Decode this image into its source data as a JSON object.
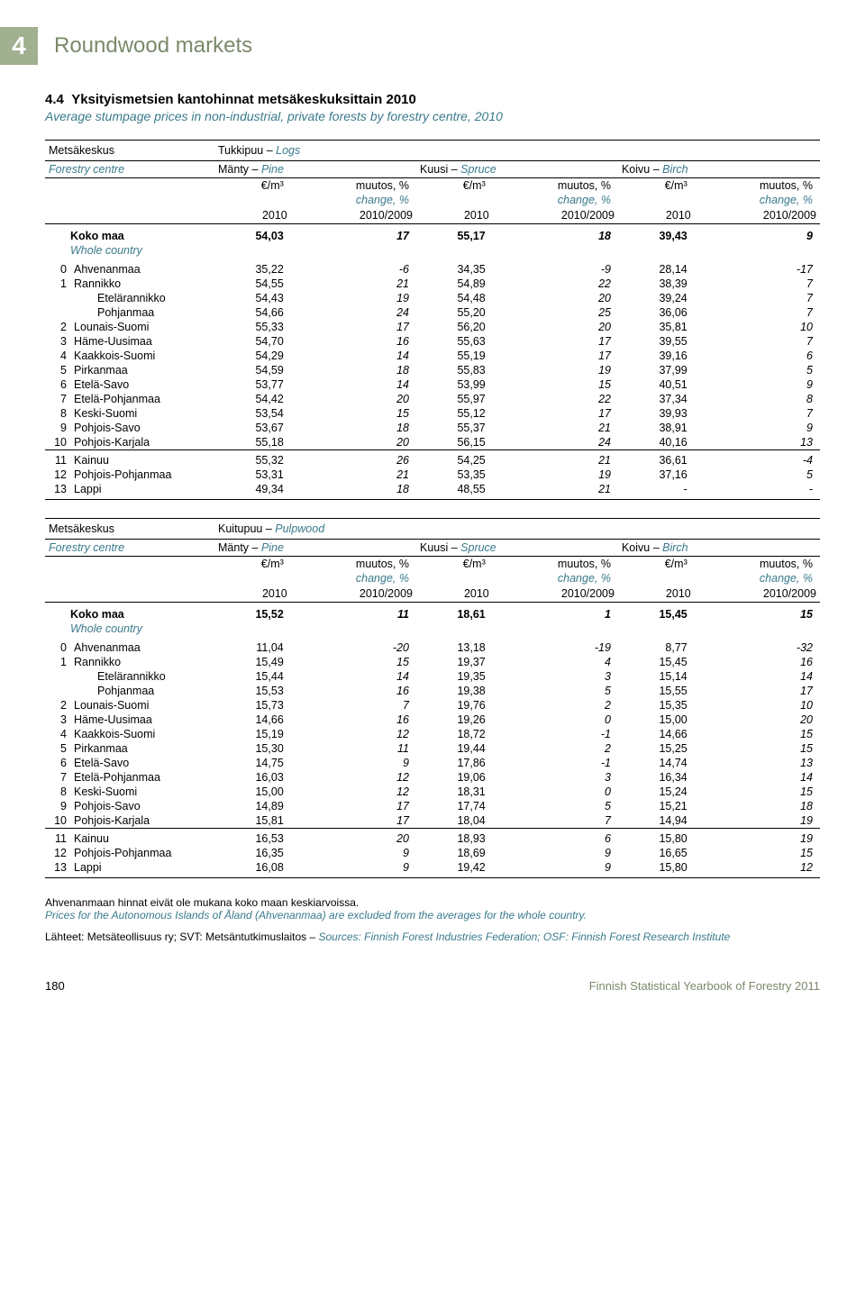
{
  "chapter": {
    "num": "4",
    "title": "Roundwood markets"
  },
  "section": {
    "num": "4.4",
    "title_fi": "Yksityismetsien kantohinnat metsäkeskuksittain 2010",
    "title_en": "Average stumpage prices in non-industrial, private forests by forestry centre, 2010"
  },
  "hdr": {
    "metsakeskus": "Metsäkeskus",
    "forestry_centre": "Forestry centre",
    "manty": "Mänty –",
    "pine": "Pine",
    "kuusi": "Kuusi –",
    "spruce": "Spruce",
    "koivu": "Koivu –",
    "birch": "Birch",
    "unit": "€/m³",
    "muutos": "muutos, %",
    "change": "change, %",
    "year": "2010",
    "period": "2010/2009"
  },
  "tables": [
    {
      "category": "Tukkipuu –",
      "category_en": "Logs",
      "koko": {
        "label": "Koko maa",
        "sub": "Whole country",
        "v": [
          "54,03",
          "17",
          "55,17",
          "18",
          "39,43",
          "9"
        ]
      },
      "groups": [
        [
          {
            "c": "0",
            "n": "Ahvenanmaa",
            "v": [
              "35,22",
              "-6",
              "34,35",
              "-9",
              "28,14",
              "-17"
            ]
          },
          {
            "c": "1",
            "n": "Rannikko",
            "v": [
              "54,55",
              "21",
              "54,89",
              "22",
              "38,39",
              "7"
            ]
          },
          {
            "c": "",
            "n": "Etelärannikko",
            "indent": true,
            "v": [
              "54,43",
              "19",
              "54,48",
              "20",
              "39,24",
              "7"
            ]
          },
          {
            "c": "",
            "n": "Pohjanmaa",
            "indent": true,
            "v": [
              "54,66",
              "24",
              "55,20",
              "25",
              "36,06",
              "7"
            ]
          },
          {
            "c": "2",
            "n": "Lounais-Suomi",
            "v": [
              "55,33",
              "17",
              "56,20",
              "20",
              "35,81",
              "10"
            ]
          },
          {
            "c": "3",
            "n": "Häme-Uusimaa",
            "v": [
              "54,70",
              "16",
              "55,63",
              "17",
              "39,55",
              "7"
            ]
          },
          {
            "c": "4",
            "n": "Kaakkois-Suomi",
            "v": [
              "54,29",
              "14",
              "55,19",
              "17",
              "39,16",
              "6"
            ]
          },
          {
            "c": "5",
            "n": "Pirkanmaa",
            "v": [
              "54,59",
              "18",
              "55,83",
              "19",
              "37,99",
              "5"
            ]
          },
          {
            "c": "6",
            "n": "Etelä-Savo",
            "v": [
              "53,77",
              "14",
              "53,99",
              "15",
              "40,51",
              "9"
            ]
          },
          {
            "c": "7",
            "n": "Etelä-Pohjanmaa",
            "v": [
              "54,42",
              "20",
              "55,97",
              "22",
              "37,34",
              "8"
            ]
          },
          {
            "c": "8",
            "n": "Keski-Suomi",
            "v": [
              "53,54",
              "15",
              "55,12",
              "17",
              "39,93",
              "7"
            ]
          },
          {
            "c": "9",
            "n": "Pohjois-Savo",
            "v": [
              "53,67",
              "18",
              "55,37",
              "21",
              "38,91",
              "9"
            ]
          },
          {
            "c": "10",
            "n": "Pohjois-Karjala",
            "v": [
              "55,18",
              "20",
              "56,15",
              "24",
              "40,16",
              "13"
            ]
          }
        ],
        [
          {
            "c": "11",
            "n": "Kainuu",
            "v": [
              "55,32",
              "26",
              "54,25",
              "21",
              "36,61",
              "-4"
            ]
          },
          {
            "c": "12",
            "n": "Pohjois-Pohjanmaa",
            "v": [
              "53,31",
              "21",
              "53,35",
              "19",
              "37,16",
              "5"
            ]
          },
          {
            "c": "13",
            "n": "Lappi",
            "v": [
              "49,34",
              "18",
              "48,55",
              "21",
              "-",
              "-"
            ]
          }
        ]
      ]
    },
    {
      "category": "Kuitupuu –",
      "category_en": "Pulpwood",
      "koko": {
        "label": "Koko maa",
        "sub": "Whole country",
        "v": [
          "15,52",
          "11",
          "18,61",
          "1",
          "15,45",
          "15"
        ]
      },
      "groups": [
        [
          {
            "c": "0",
            "n": "Ahvenanmaa",
            "v": [
              "11,04",
              "-20",
              "13,18",
              "-19",
              "8,77",
              "-32"
            ]
          },
          {
            "c": "1",
            "n": "Rannikko",
            "v": [
              "15,49",
              "15",
              "19,37",
              "4",
              "15,45",
              "16"
            ]
          },
          {
            "c": "",
            "n": "Etelärannikko",
            "indent": true,
            "v": [
              "15,44",
              "14",
              "19,35",
              "3",
              "15,14",
              "14"
            ]
          },
          {
            "c": "",
            "n": "Pohjanmaa",
            "indent": true,
            "v": [
              "15,53",
              "16",
              "19,38",
              "5",
              "15,55",
              "17"
            ]
          },
          {
            "c": "2",
            "n": "Lounais-Suomi",
            "v": [
              "15,73",
              "7",
              "19,76",
              "2",
              "15,35",
              "10"
            ]
          },
          {
            "c": "3",
            "n": "Häme-Uusimaa",
            "v": [
              "14,66",
              "16",
              "19,26",
              "0",
              "15,00",
              "20"
            ]
          },
          {
            "c": "4",
            "n": "Kaakkois-Suomi",
            "v": [
              "15,19",
              "12",
              "18,72",
              "-1",
              "14,66",
              "15"
            ]
          },
          {
            "c": "5",
            "n": "Pirkanmaa",
            "v": [
              "15,30",
              "11",
              "19,44",
              "2",
              "15,25",
              "15"
            ]
          },
          {
            "c": "6",
            "n": "Etelä-Savo",
            "v": [
              "14,75",
              "9",
              "17,86",
              "-1",
              "14,74",
              "13"
            ]
          },
          {
            "c": "7",
            "n": "Etelä-Pohjanmaa",
            "v": [
              "16,03",
              "12",
              "19,06",
              "3",
              "16,34",
              "14"
            ]
          },
          {
            "c": "8",
            "n": "Keski-Suomi",
            "v": [
              "15,00",
              "12",
              "18,31",
              "0",
              "15,24",
              "15"
            ]
          },
          {
            "c": "9",
            "n": "Pohjois-Savo",
            "v": [
              "14,89",
              "17",
              "17,74",
              "5",
              "15,21",
              "18"
            ]
          },
          {
            "c": "10",
            "n": "Pohjois-Karjala",
            "v": [
              "15,81",
              "17",
              "18,04",
              "7",
              "14,94",
              "19"
            ]
          }
        ],
        [
          {
            "c": "11",
            "n": "Kainuu",
            "v": [
              "16,53",
              "20",
              "18,93",
              "6",
              "15,80",
              "19"
            ]
          },
          {
            "c": "12",
            "n": "Pohjois-Pohjanmaa",
            "v": [
              "16,35",
              "9",
              "18,69",
              "9",
              "16,65",
              "15"
            ]
          },
          {
            "c": "13",
            "n": "Lappi",
            "v": [
              "16,08",
              "9",
              "19,42",
              "9",
              "15,80",
              "12"
            ]
          }
        ]
      ]
    }
  ],
  "footnotes": {
    "fi": "Ahvenanmaan hinnat eivät ole mukana koko maan keskiarvoissa.",
    "en": "Prices for the Autonomous Islands of Åland (Ahvenanmaa) are excluded from the averages for the whole country.",
    "src_fi": "Lähteet: Metsäteollisuus ry; SVT: Metsäntutkimuslaitos – ",
    "src_en": "Sources: Finnish Forest Industries Federation; OSF: Finnish Forest Research Institute"
  },
  "footer": {
    "page": "180",
    "pub": "Finnish Statistical Yearbook of Forestry 2011"
  },
  "colors": {
    "accent": "#3a7a8c",
    "header_bg": "#a0b090",
    "header_text": "#7a8a6a"
  }
}
